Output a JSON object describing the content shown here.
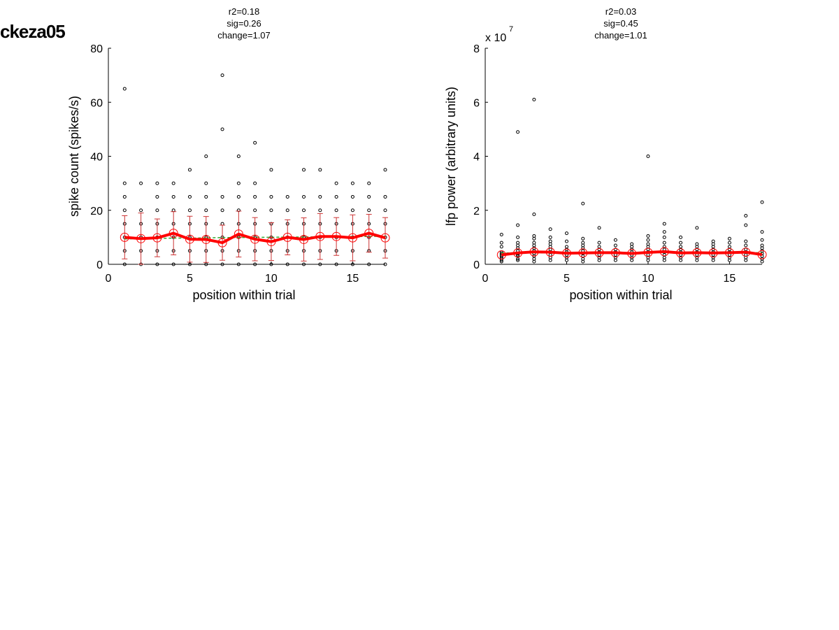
{
  "figure_label": "ckeza05",
  "chart_data": [
    {
      "type": "scatter",
      "title_lines": [
        "r2=0.18",
        "sig=0.26",
        "change=1.07"
      ],
      "xlabel": "position within trial",
      "ylabel": "spike count (spikes/s)",
      "exponent_label": "",
      "xlim": [
        0,
        17
      ],
      "ylim": [
        0,
        80
      ],
      "xticks": [
        0,
        5,
        10,
        15
      ],
      "yticks": [
        0,
        20,
        40,
        60,
        80
      ],
      "ytick_labels": [
        "0",
        "20",
        "40",
        "60",
        "80"
      ],
      "grid": false,
      "colors": {
        "points": "#000000",
        "mean": "#ff0000",
        "errorbar": "#cc3333",
        "fit": "#33aa33"
      },
      "points": [
        {
          "x": 1,
          "ys": [
            0,
            5,
            10,
            15,
            20,
            25,
            30,
            65
          ]
        },
        {
          "x": 2,
          "ys": [
            0,
            5,
            10,
            15,
            20,
            30
          ]
        },
        {
          "x": 3,
          "ys": [
            0,
            5,
            10,
            15,
            20,
            25,
            30
          ]
        },
        {
          "x": 4,
          "ys": [
            0,
            5,
            10,
            15,
            20,
            25,
            30
          ]
        },
        {
          "x": 5,
          "ys": [
            0,
            5,
            10,
            15,
            20,
            25,
            35
          ]
        },
        {
          "x": 6,
          "ys": [
            0,
            5,
            10,
            15,
            20,
            25,
            30,
            40
          ]
        },
        {
          "x": 7,
          "ys": [
            0,
            5,
            10,
            15,
            20,
            25,
            50,
            70
          ]
        },
        {
          "x": 8,
          "ys": [
            0,
            5,
            10,
            15,
            20,
            25,
            30,
            40
          ]
        },
        {
          "x": 9,
          "ys": [
            0,
            5,
            10,
            15,
            20,
            25,
            30,
            45
          ]
        },
        {
          "x": 10,
          "ys": [
            0,
            5,
            10,
            15,
            20,
            25,
            35
          ]
        },
        {
          "x": 11,
          "ys": [
            0,
            5,
            10,
            15,
            20,
            25
          ]
        },
        {
          "x": 12,
          "ys": [
            0,
            5,
            10,
            15,
            20,
            25,
            35
          ]
        },
        {
          "x": 13,
          "ys": [
            0,
            5,
            10,
            15,
            20,
            25,
            35
          ]
        },
        {
          "x": 14,
          "ys": [
            0,
            5,
            10,
            15,
            20,
            25,
            30
          ]
        },
        {
          "x": 15,
          "ys": [
            0,
            5,
            10,
            15,
            20,
            25,
            30
          ]
        },
        {
          "x": 16,
          "ys": [
            0,
            5,
            10,
            15,
            20,
            25,
            30
          ]
        },
        {
          "x": 17,
          "ys": [
            0,
            5,
            10,
            15,
            20,
            25,
            35
          ]
        }
      ],
      "mean": [
        10,
        9.5,
        9.8,
        11.5,
        9.3,
        9.2,
        8,
        11.2,
        9.3,
        8.4,
        10,
        9.2,
        10.3,
        10.3,
        9.8,
        11.5,
        9.8
      ],
      "errorbar": [
        8,
        9.5,
        7,
        8,
        8.5,
        8.5,
        6.5,
        8.5,
        8,
        7,
        6.5,
        8,
        8.5,
        7,
        8.5,
        7,
        7.5
      ],
      "fit": [
        9.4,
        9.5,
        9.6,
        9.7,
        9.7,
        9.8,
        9.9,
        9.9,
        10,
        10,
        10.1,
        10.1,
        10.2,
        10.2,
        10.3,
        10.3,
        10.4
      ]
    },
    {
      "type": "scatter",
      "title_lines": [
        "r2=0.03",
        "sig=0.45",
        "change=1.01"
      ],
      "xlabel": "position within trial",
      "ylabel": "lfp power (arbitrary units)",
      "exponent_label": "x 10",
      "exponent_power": "7",
      "xlim": [
        0,
        17
      ],
      "ylim": [
        0,
        80000000
      ],
      "xticks": [
        0,
        5,
        10,
        15
      ],
      "yticks": [
        0,
        20000000,
        40000000,
        60000000,
        80000000
      ],
      "ytick_labels": [
        "0",
        "2",
        "4",
        "6",
        "8"
      ],
      "grid": false,
      "colors": {
        "points": "#000000",
        "mean": "#ff0000",
        "errorbar": "#cc3333",
        "fit": "#33aa33"
      },
      "points": [
        {
          "x": 1,
          "ys": [
            1000000,
            1500000,
            2000000,
            2500000,
            3000000,
            3500000,
            4000000,
            4500000,
            6500000,
            8000000,
            11000000
          ]
        },
        {
          "x": 2,
          "ys": [
            1500000,
            2000000,
            3000000,
            3500000,
            4000000,
            5000000,
            6000000,
            7000000,
            8000000,
            10000000,
            14500000,
            49000000
          ]
        },
        {
          "x": 3,
          "ys": [
            1000000,
            2000000,
            3000000,
            4000000,
            5000000,
            6000000,
            7000000,
            8000000,
            9500000,
            10500000,
            18500000,
            61000000
          ]
        },
        {
          "x": 4,
          "ys": [
            1500000,
            2500000,
            3500000,
            4500000,
            5500000,
            6500000,
            7500000,
            8500000,
            10000000,
            13000000
          ]
        },
        {
          "x": 5,
          "ys": [
            1500000,
            2500000,
            3500000,
            4500000,
            5500000,
            6500000,
            8500000,
            11500000
          ]
        },
        {
          "x": 6,
          "ys": [
            1000000,
            2000000,
            3000000,
            4000000,
            5000000,
            6000000,
            7000000,
            8000000,
            9500000,
            22500000
          ]
        },
        {
          "x": 7,
          "ys": [
            1500000,
            2500000,
            3500000,
            4500000,
            5500000,
            6500000,
            8000000,
            13500000
          ]
        },
        {
          "x": 8,
          "ys": [
            1500000,
            2500000,
            3500000,
            4500000,
            5500000,
            7000000,
            9000000
          ]
        },
        {
          "x": 9,
          "ys": [
            1500000,
            2500000,
            3500000,
            4500000,
            5500000,
            6500000,
            7500000
          ]
        },
        {
          "x": 10,
          "ys": [
            1500000,
            2500000,
            3500000,
            4500000,
            5500000,
            6500000,
            7500000,
            9000000,
            10500000,
            40000000
          ]
        },
        {
          "x": 11,
          "ys": [
            1500000,
            2500000,
            3500000,
            4500000,
            5500000,
            6500000,
            8000000,
            10000000,
            12000000,
            15000000
          ]
        },
        {
          "x": 12,
          "ys": [
            1500000,
            2500000,
            3500000,
            4500000,
            5500000,
            6500000,
            8000000,
            10000000
          ]
        },
        {
          "x": 13,
          "ys": [
            1500000,
            2500000,
            3500000,
            4500000,
            5500000,
            6500000,
            7500000,
            13500000
          ]
        },
        {
          "x": 14,
          "ys": [
            1500000,
            2500000,
            3500000,
            4500000,
            5500000,
            6500000,
            7500000,
            8500000
          ]
        },
        {
          "x": 15,
          "ys": [
            1500000,
            2500000,
            3500000,
            4500000,
            5500000,
            6500000,
            8000000,
            9500000
          ]
        },
        {
          "x": 16,
          "ys": [
            1500000,
            2500000,
            3500000,
            4500000,
            5500000,
            7000000,
            8500000,
            14500000,
            18000000
          ]
        },
        {
          "x": 17,
          "ys": [
            1000000,
            2000000,
            3000000,
            4000000,
            5000000,
            6000000,
            7000000,
            9000000,
            12000000,
            23000000
          ]
        }
      ],
      "mean": [
        3500000,
        4200000,
        4600000,
        4500000,
        4100000,
        4200000,
        4300000,
        4300000,
        4000000,
        4400000,
        4700000,
        4200000,
        4300000,
        4200000,
        4300000,
        4500000,
        3600000
      ],
      "errorbar": [
        0,
        0,
        0,
        0,
        0,
        0,
        0,
        0,
        0,
        0,
        0,
        0,
        0,
        0,
        0,
        0,
        0
      ],
      "fit": [
        4200000,
        4200000,
        4200000,
        4200000,
        4250000,
        4250000,
        4250000,
        4250000,
        4300000,
        4300000,
        4300000,
        4300000,
        4300000,
        4300000,
        4300000,
        4300000,
        4300000
      ]
    }
  ]
}
